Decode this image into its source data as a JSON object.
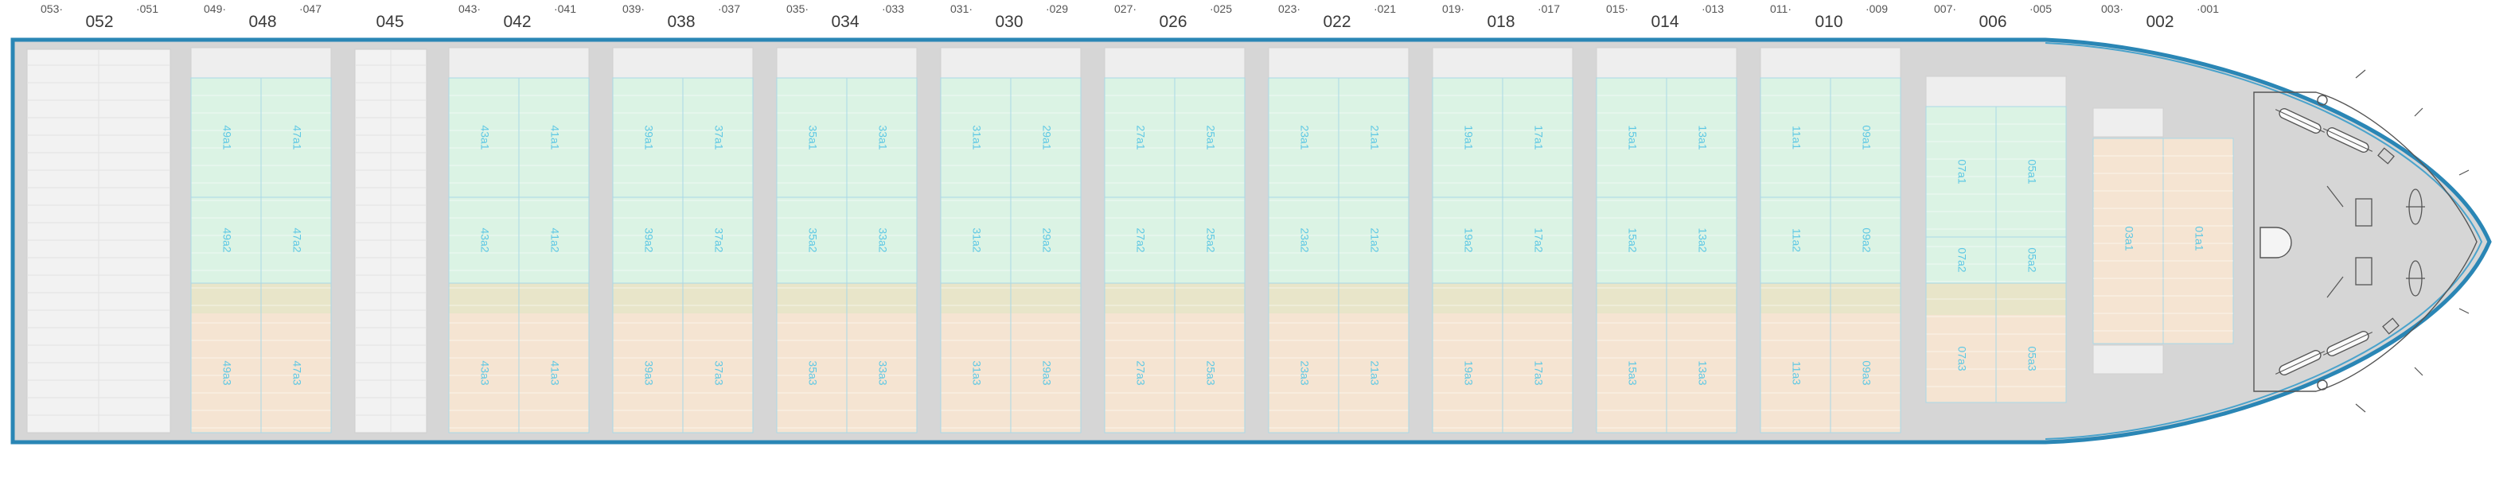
{
  "bays": [
    {
      "main": "052",
      "fwd": "053",
      "aft": "051"
    },
    {
      "main": "048",
      "fwd": "049",
      "aft": "047"
    },
    {
      "main": "045",
      "fwd": "",
      "aft": ""
    },
    {
      "main": "042",
      "fwd": "043",
      "aft": "041"
    },
    {
      "main": "038",
      "fwd": "039",
      "aft": "037"
    },
    {
      "main": "034",
      "fwd": "035",
      "aft": "033"
    },
    {
      "main": "030",
      "fwd": "031",
      "aft": "029"
    },
    {
      "main": "026",
      "fwd": "027",
      "aft": "025"
    },
    {
      "main": "022",
      "fwd": "023",
      "aft": "021"
    },
    {
      "main": "018",
      "fwd": "019",
      "aft": "017"
    },
    {
      "main": "014",
      "fwd": "015",
      "aft": "013"
    },
    {
      "main": "010",
      "fwd": "011",
      "aft": "009"
    },
    {
      "main": "006",
      "fwd": "007",
      "aft": "005"
    },
    {
      "main": "002",
      "fwd": "003",
      "aft": "001"
    }
  ],
  "holds": [
    {
      "slots": [
        [
          "49a1",
          "47a1"
        ],
        [
          "49a2",
          "47a2"
        ],
        [
          "49a3",
          "47a3"
        ]
      ]
    },
    {
      "slots": [
        [
          "43a1",
          "41a1"
        ],
        [
          "43a2",
          "41a2"
        ],
        [
          "43a3",
          "41a3"
        ]
      ]
    },
    {
      "slots": [
        [
          "39a1",
          "37a1"
        ],
        [
          "39a2",
          "37a2"
        ],
        [
          "39a3",
          "37a3"
        ]
      ]
    },
    {
      "slots": [
        [
          "35a1",
          "33a1"
        ],
        [
          "35a2",
          "33a2"
        ],
        [
          "35a3",
          "33a3"
        ]
      ]
    },
    {
      "slots": [
        [
          "31a1",
          "29a1"
        ],
        [
          "31a2",
          "29a2"
        ],
        [
          "31a3",
          "29a3"
        ]
      ]
    },
    {
      "slots": [
        [
          "27a1",
          "25a1"
        ],
        [
          "27a2",
          "25a2"
        ],
        [
          "27a3",
          "25a3"
        ]
      ]
    },
    {
      "slots": [
        [
          "23a1",
          "21a1"
        ],
        [
          "23a2",
          "21a2"
        ],
        [
          "23a3",
          "21a3"
        ]
      ]
    },
    {
      "slots": [
        [
          "19a1",
          "17a1"
        ],
        [
          "19a2",
          "17a2"
        ],
        [
          "19a3",
          "17a3"
        ]
      ]
    },
    {
      "slots": [
        [
          "15a1",
          "13a1"
        ],
        [
          "15a2",
          "13a2"
        ],
        [
          "15a3",
          "13a3"
        ]
      ]
    },
    {
      "slots": [
        [
          "11a1",
          "09a1"
        ],
        [
          "11a2",
          "09a2"
        ],
        [
          "11a3",
          "09a3"
        ]
      ]
    },
    {
      "slots": [
        [
          "07a1",
          "05a1"
        ],
        [
          "07a2",
          "05a2"
        ],
        [
          "07a3",
          "05a3"
        ]
      ]
    },
    {
      "slots": [
        [
          "03a1",
          "01a1"
        ]
      ]
    }
  ],
  "colors": {
    "hull_outline": "#2a86b5",
    "deck": "#d6d6d6",
    "hatch_cover": "#eeeeee",
    "slot_green": "#dbf3e4",
    "slot_tan": "#e8e5c9",
    "slot_peach": "#f5e4d2",
    "slot_text": "#5ec8e4",
    "gridline": "#a9d8e6"
  }
}
